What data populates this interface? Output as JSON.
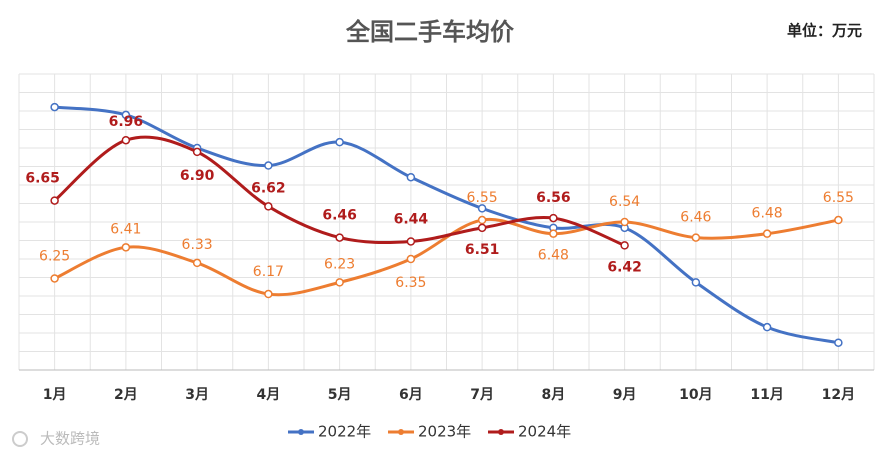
{
  "chart_data": {
    "type": "line",
    "title": "全国二手车均价",
    "unit": "单位：万元",
    "watermark": "大数跨境",
    "categories": [
      "1月",
      "2月",
      "3月",
      "4月",
      "5月",
      "6月",
      "7月",
      "8月",
      "9月",
      "10月",
      "11月",
      "12月"
    ],
    "series": [
      {
        "name": "2022年",
        "color": "#4472c4",
        "values": [
          7.13,
          7.09,
          6.92,
          6.83,
          6.95,
          6.77,
          6.61,
          6.51,
          6.51,
          6.23,
          6.0,
          5.92
        ]
      },
      {
        "name": "2023年",
        "color": "#ed7d31",
        "values": [
          6.25,
          6.41,
          6.33,
          6.17,
          6.23,
          6.35,
          6.55,
          6.48,
          6.54,
          6.46,
          6.48,
          6.55
        ],
        "value_labels": [
          "6.25",
          "6.41",
          "6.33",
          "6.17",
          "6.23",
          "6.35",
          "6.55",
          "6.48",
          "6.54",
          "6.46",
          "6.48",
          "6.55"
        ]
      },
      {
        "name": "2024年",
        "color": "#b01c1c",
        "values": [
          6.65,
          6.96,
          6.9,
          6.62,
          6.46,
          6.44,
          6.51,
          6.56,
          6.42,
          null,
          null,
          null
        ],
        "value_labels": [
          "6.65",
          "6.96",
          "6.90",
          "6.62",
          "6.46",
          "6.44",
          "6.51",
          "6.56",
          "6.42",
          null,
          null,
          null
        ]
      }
    ],
    "ylim": [
      5.78,
      7.3
    ],
    "grid": true
  }
}
